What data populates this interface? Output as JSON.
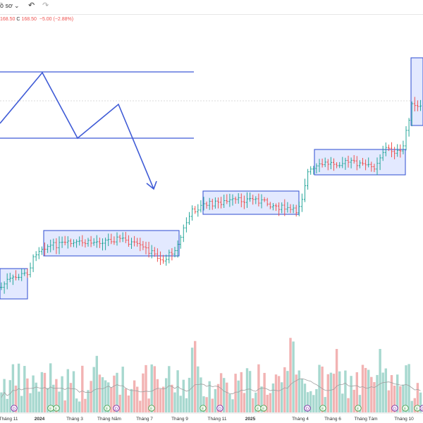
{
  "toolbar": {
    "layout_label": "ồ sơ",
    "chevron_glyph": "⌄",
    "undo_glyph": "↶",
    "redo_glyph": "↷"
  },
  "legend": {
    "low_value": "168.50",
    "close_label": "C",
    "close_value": "168.50",
    "change": "−5.00 (−2.88%)",
    "down_color": "#ef5350"
  },
  "colors": {
    "up": "#26a69a",
    "down": "#ef5350",
    "drawing": "#3f5bd6",
    "box_fill": "#d9e1ff",
    "vol_up": "#a7d8cf",
    "vol_down": "#f2b3b3"
  },
  "chart_data": {
    "type": "ohlc",
    "x_axis_labels": [
      "Tháng 11",
      "2024",
      "Tháng 3",
      "Tháng Năm",
      "Tháng 7",
      "Tháng 9",
      "Tháng 11",
      "2025",
      "Tháng 4",
      "Tháng 6",
      "Tháng Tám",
      "Tháng 10"
    ],
    "event_markers": [
      "D",
      "E",
      "E",
      "E",
      "D",
      "E",
      "E",
      "D",
      "E",
      "E",
      "D",
      "E",
      "E",
      "D",
      "E",
      "E",
      "D"
    ],
    "consolidation_boxes": 5,
    "drawn_pattern": "double-top with support/resistance lines and downward arrow"
  }
}
